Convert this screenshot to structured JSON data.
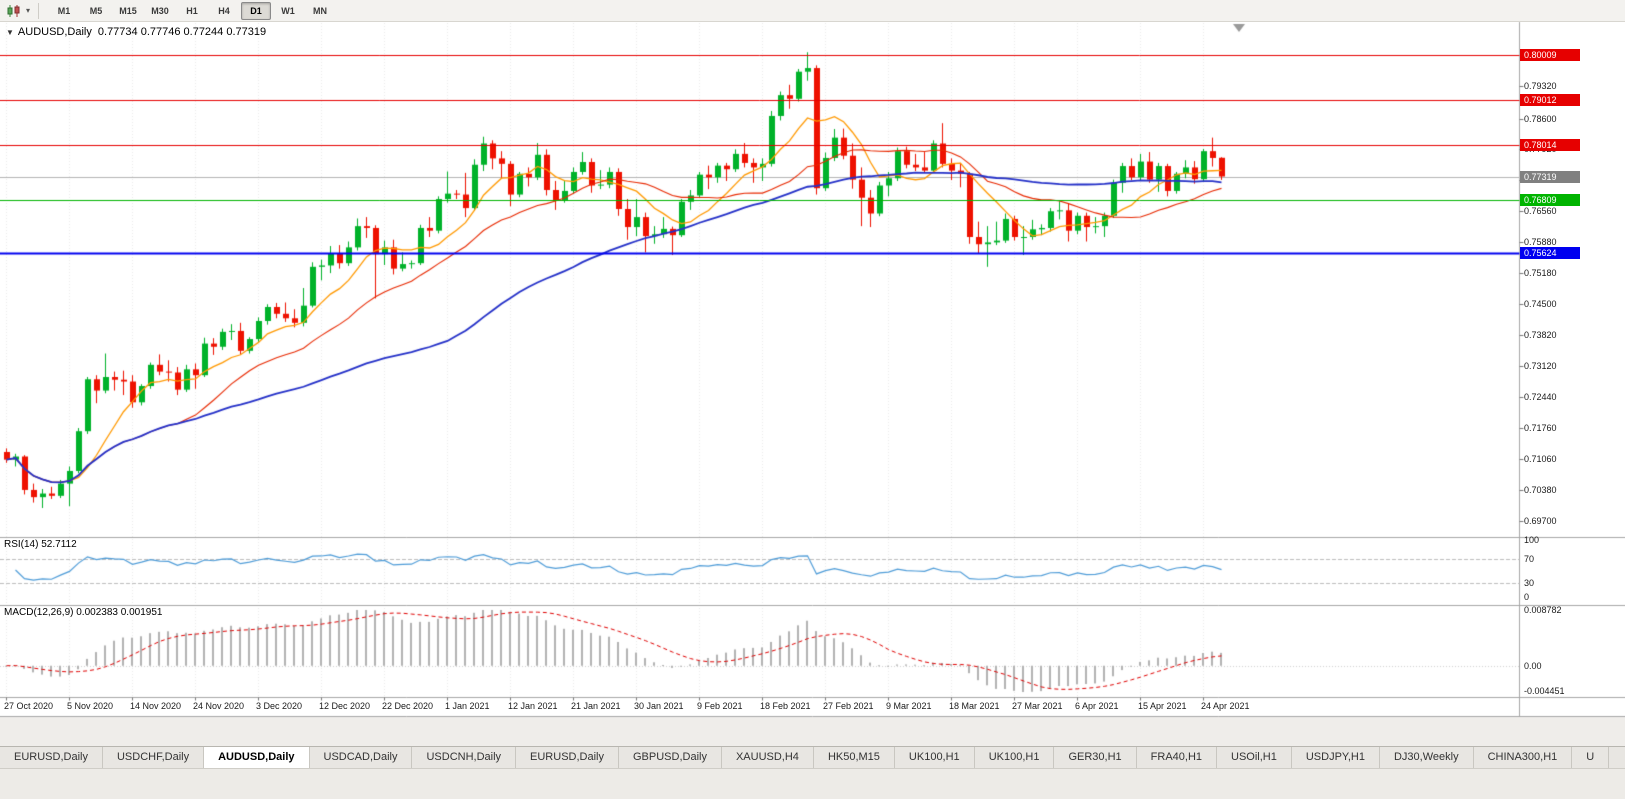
{
  "toolbar": {
    "timeframes": [
      {
        "label": "M1",
        "active": false
      },
      {
        "label": "M5",
        "active": false
      },
      {
        "label": "M15",
        "active": false
      },
      {
        "label": "M30",
        "active": false
      },
      {
        "label": "H1",
        "active": false
      },
      {
        "label": "H4",
        "active": false
      },
      {
        "label": "D1",
        "active": true
      },
      {
        "label": "W1",
        "active": false
      },
      {
        "label": "MN",
        "active": false
      }
    ]
  },
  "chart_title": {
    "collapse_icon": "▼",
    "symbol": "AUDUSD,Daily",
    "ohlc": "0.77734 0.77746 0.77244 0.77319"
  },
  "chart_data": {
    "type": "candlestick",
    "symbol": "AUDUSD",
    "period": "Daily",
    "axis_top_price": 0.8074,
    "axis_bottom_price": 0.6936,
    "price_axis_labels": [
      "0.79320",
      "0.78600",
      "0.77920",
      "0.77240",
      "0.76560",
      "0.75880",
      "0.75180",
      "0.74500",
      "0.73820",
      "0.73120",
      "0.72440",
      "0.71760",
      "0.71060",
      "0.70380",
      "0.69700"
    ],
    "date_labels": [
      "27 Oct 2020",
      "5 Nov 2020",
      "14 Nov 2020",
      "24 Nov 2020",
      "3 Dec 2020",
      "12 Dec 2020",
      "22 Dec 2020",
      "1 Jan 2021",
      "12 Jan 2021",
      "21 Jan 2021",
      "30 Jan 2021",
      "9 Feb 2021",
      "18 Feb 2021",
      "27 Feb 2021",
      "9 Mar 2021",
      "18 Mar 2021",
      "27 Mar 2021",
      "6 Apr 2021",
      "15 Apr 2021",
      "24 Apr 2021"
    ],
    "levels": [
      {
        "price": 0.80009,
        "label": "0.80009",
        "color": "#E60000",
        "line_width": 1
      },
      {
        "price": 0.79012,
        "label": "0.79012",
        "color": "#E60000",
        "line_width": 1
      },
      {
        "price": 0.78014,
        "label": "0.78014",
        "color": "#E60000",
        "line_width": 1
      },
      {
        "price": 0.76809,
        "label": "0.76809",
        "color": "#00B400",
        "line_width": 1
      },
      {
        "price": 0.75624,
        "label": "0.75624",
        "color": "#0000F0",
        "line_width": 2
      }
    ],
    "current_price": {
      "price": 0.77319,
      "label": "0.77319",
      "color": "#808080"
    },
    "moving_averages": [
      {
        "period": 8,
        "color": "#FF9900",
        "width": 1.3
      },
      {
        "period": 20,
        "color": "#E82800",
        "width": 1.1
      },
      {
        "period": 50,
        "color": "#2430C8",
        "width": 1.8
      }
    ],
    "indicators": [
      {
        "title": "RSI(14)",
        "value_label": "52.7112",
        "scale_labels": [
          "100",
          "70",
          "30",
          "0"
        ],
        "upper_level": 70,
        "lower_level": 30,
        "color": "#4E9CD8"
      },
      {
        "title": "MACD(12,26,9)",
        "value_label": "0.002383 0.001951",
        "scale_max": 0.008782,
        "scale_min": -0.004451,
        "scale_labels": [
          "0.008782",
          "0.00",
          "-0.004451"
        ],
        "hist_color": "#B2B2B2",
        "signal_color": "#E00000"
      }
    ],
    "candles": [
      [
        0.7122,
        0.713,
        0.7098,
        0.7105
      ],
      [
        0.7105,
        0.7118,
        0.709,
        0.7112
      ],
      [
        0.7112,
        0.7115,
        0.7028,
        0.7038
      ],
      [
        0.7038,
        0.7052,
        0.701,
        0.7022
      ],
      [
        0.7022,
        0.704,
        0.6998,
        0.703
      ],
      [
        0.703,
        0.7045,
        0.7018,
        0.7025
      ],
      [
        0.7025,
        0.706,
        0.702,
        0.7052
      ],
      [
        0.7052,
        0.709,
        0.7002,
        0.708
      ],
      [
        0.708,
        0.7175,
        0.7075,
        0.7168
      ],
      [
        0.7168,
        0.7288,
        0.7162,
        0.7283
      ],
      [
        0.7283,
        0.7292,
        0.723,
        0.7258
      ],
      [
        0.7258,
        0.734,
        0.7252,
        0.7288
      ],
      [
        0.7288,
        0.73,
        0.7258,
        0.7282
      ],
      [
        0.7282,
        0.7302,
        0.7248,
        0.7278
      ],
      [
        0.7278,
        0.7292,
        0.722,
        0.7232
      ],
      [
        0.7232,
        0.7272,
        0.7225,
        0.7268
      ],
      [
        0.7268,
        0.732,
        0.7262,
        0.7315
      ],
      [
        0.7315,
        0.7338,
        0.7292,
        0.73
      ],
      [
        0.73,
        0.7325,
        0.7278,
        0.7298
      ],
      [
        0.7298,
        0.731,
        0.7248,
        0.726
      ],
      [
        0.726,
        0.7315,
        0.7255,
        0.7305
      ],
      [
        0.7305,
        0.7318,
        0.7262,
        0.7292
      ],
      [
        0.7292,
        0.7375,
        0.7288,
        0.7362
      ],
      [
        0.7362,
        0.7374,
        0.7337,
        0.7355
      ],
      [
        0.7355,
        0.7395,
        0.7348,
        0.7388
      ],
      [
        0.7388,
        0.7405,
        0.737,
        0.739
      ],
      [
        0.739,
        0.7408,
        0.7338,
        0.7346
      ],
      [
        0.7346,
        0.7376,
        0.734,
        0.7372
      ],
      [
        0.7372,
        0.742,
        0.7366,
        0.7412
      ],
      [
        0.7412,
        0.7449,
        0.7404,
        0.7443
      ],
      [
        0.7443,
        0.7452,
        0.7418,
        0.7428
      ],
      [
        0.7428,
        0.7453,
        0.741,
        0.7418
      ],
      [
        0.7418,
        0.7438,
        0.7398,
        0.7408
      ],
      [
        0.7408,
        0.7485,
        0.74,
        0.7446
      ],
      [
        0.7446,
        0.7542,
        0.7442,
        0.7532
      ],
      [
        0.7532,
        0.7548,
        0.7502,
        0.7535
      ],
      [
        0.7535,
        0.7578,
        0.7518,
        0.7562
      ],
      [
        0.7562,
        0.758,
        0.7528,
        0.754
      ],
      [
        0.754,
        0.7588,
        0.7534,
        0.7575
      ],
      [
        0.7575,
        0.7639,
        0.7568,
        0.7622
      ],
      [
        0.7622,
        0.7642,
        0.7596,
        0.7618
      ],
      [
        0.7618,
        0.7624,
        0.7462,
        0.756
      ],
      [
        0.756,
        0.759,
        0.7536,
        0.7575
      ],
      [
        0.7575,
        0.7592,
        0.7515,
        0.7528
      ],
      [
        0.7528,
        0.7564,
        0.7522,
        0.7538
      ],
      [
        0.7538,
        0.7546,
        0.7528,
        0.754
      ],
      [
        0.754,
        0.7625,
        0.7536,
        0.7618
      ],
      [
        0.7618,
        0.7642,
        0.7598,
        0.7612
      ],
      [
        0.7612,
        0.7688,
        0.7606,
        0.7682
      ],
      [
        0.7682,
        0.7743,
        0.7674,
        0.7694
      ],
      [
        0.7694,
        0.7702,
        0.7682,
        0.7692
      ],
      [
        0.7692,
        0.774,
        0.7642,
        0.7662
      ],
      [
        0.7662,
        0.777,
        0.7656,
        0.7758
      ],
      [
        0.7758,
        0.782,
        0.7744,
        0.7805
      ],
      [
        0.7805,
        0.7812,
        0.7748,
        0.7772
      ],
      [
        0.7772,
        0.7788,
        0.7728,
        0.776
      ],
      [
        0.776,
        0.7766,
        0.7666,
        0.7692
      ],
      [
        0.7692,
        0.7742,
        0.7686,
        0.7738
      ],
      [
        0.7738,
        0.7752,
        0.771,
        0.773
      ],
      [
        0.773,
        0.7806,
        0.7724,
        0.778
      ],
      [
        0.778,
        0.7792,
        0.769,
        0.7702
      ],
      [
        0.7702,
        0.7722,
        0.7658,
        0.768
      ],
      [
        0.768,
        0.7722,
        0.7674,
        0.77
      ],
      [
        0.77,
        0.7752,
        0.7694,
        0.7742
      ],
      [
        0.7742,
        0.7786,
        0.7736,
        0.7764
      ],
      [
        0.7764,
        0.7772,
        0.7696,
        0.7712
      ],
      [
        0.7712,
        0.7746,
        0.7704,
        0.7714
      ],
      [
        0.7714,
        0.7752,
        0.7706,
        0.7742
      ],
      [
        0.7742,
        0.775,
        0.7645,
        0.766
      ],
      [
        0.766,
        0.7682,
        0.7592,
        0.762
      ],
      [
        0.762,
        0.7682,
        0.76,
        0.7642
      ],
      [
        0.7642,
        0.7652,
        0.7564,
        0.76
      ],
      [
        0.76,
        0.7622,
        0.7583,
        0.7604
      ],
      [
        0.7604,
        0.7642,
        0.7596,
        0.7616
      ],
      [
        0.7616,
        0.7621,
        0.7558,
        0.7602
      ],
      [
        0.7602,
        0.7682,
        0.7598,
        0.7676
      ],
      [
        0.7676,
        0.7702,
        0.7658,
        0.769
      ],
      [
        0.769,
        0.7742,
        0.7684,
        0.7736
      ],
      [
        0.7736,
        0.7756,
        0.7704,
        0.773
      ],
      [
        0.773,
        0.7762,
        0.7718,
        0.7756
      ],
      [
        0.7756,
        0.7762,
        0.7722,
        0.7748
      ],
      [
        0.7748,
        0.7792,
        0.7742,
        0.7782
      ],
      [
        0.7782,
        0.7806,
        0.7752,
        0.7762
      ],
      [
        0.7762,
        0.7772,
        0.7718,
        0.7752
      ],
      [
        0.7752,
        0.7772,
        0.7722,
        0.776
      ],
      [
        0.776,
        0.7877,
        0.7754,
        0.7866
      ],
      [
        0.7866,
        0.792,
        0.7856,
        0.7912
      ],
      [
        0.7912,
        0.7935,
        0.7882,
        0.7904
      ],
      [
        0.7904,
        0.797,
        0.7898,
        0.7964
      ],
      [
        0.7964,
        0.8007,
        0.7944,
        0.7972
      ],
      [
        0.7972,
        0.7978,
        0.7692,
        0.7706
      ],
      [
        0.7706,
        0.7785,
        0.77,
        0.7773
      ],
      [
        0.7773,
        0.7837,
        0.7766,
        0.7818
      ],
      [
        0.7818,
        0.7838,
        0.777,
        0.7778
      ],
      [
        0.7778,
        0.7805,
        0.7705,
        0.7725
      ],
      [
        0.7725,
        0.7752,
        0.7622,
        0.7685
      ],
      [
        0.7685,
        0.7702,
        0.762,
        0.765
      ],
      [
        0.765,
        0.772,
        0.7644,
        0.7712
      ],
      [
        0.7712,
        0.7742,
        0.7688,
        0.7728
      ],
      [
        0.7728,
        0.7796,
        0.7722,
        0.7788
      ],
      [
        0.7788,
        0.7798,
        0.775,
        0.7758
      ],
      [
        0.7758,
        0.7782,
        0.7744,
        0.7752
      ],
      [
        0.7752,
        0.7786,
        0.774,
        0.7745
      ],
      [
        0.7745,
        0.7812,
        0.774,
        0.7805
      ],
      [
        0.7805,
        0.785,
        0.7752,
        0.776
      ],
      [
        0.776,
        0.7772,
        0.7724,
        0.7745
      ],
      [
        0.7745,
        0.7762,
        0.7708,
        0.7738
      ],
      [
        0.7738,
        0.7742,
        0.7583,
        0.7598
      ],
      [
        0.7598,
        0.7632,
        0.7562,
        0.7582
      ],
      [
        0.7582,
        0.7622,
        0.7532,
        0.7586
      ],
      [
        0.7586,
        0.7632,
        0.758,
        0.759
      ],
      [
        0.759,
        0.765,
        0.7585,
        0.7638
      ],
      [
        0.7638,
        0.7645,
        0.759,
        0.7598
      ],
      [
        0.7598,
        0.7622,
        0.7558,
        0.7598
      ],
      [
        0.7598,
        0.7636,
        0.7592,
        0.7615
      ],
      [
        0.7615,
        0.7626,
        0.7602,
        0.7618
      ],
      [
        0.7618,
        0.7662,
        0.761,
        0.7655
      ],
      [
        0.7655,
        0.7677,
        0.7637,
        0.7657
      ],
      [
        0.7657,
        0.7672,
        0.7588,
        0.7612
      ],
      [
        0.7612,
        0.7652,
        0.7604,
        0.7645
      ],
      [
        0.7645,
        0.7652,
        0.7588,
        0.762
      ],
      [
        0.762,
        0.7642,
        0.7606,
        0.7622
      ],
      [
        0.7622,
        0.7652,
        0.7598,
        0.7645
      ],
      [
        0.7645,
        0.7725,
        0.764,
        0.7718
      ],
      [
        0.7718,
        0.7762,
        0.7696,
        0.7755
      ],
      [
        0.7755,
        0.7772,
        0.7724,
        0.773
      ],
      [
        0.773,
        0.7782,
        0.7722,
        0.7765
      ],
      [
        0.7765,
        0.7786,
        0.7718,
        0.7725
      ],
      [
        0.7725,
        0.7762,
        0.7698,
        0.7755
      ],
      [
        0.7755,
        0.776,
        0.7688,
        0.77
      ],
      [
        0.77,
        0.7742,
        0.7694,
        0.7738
      ],
      [
        0.7738,
        0.7768,
        0.7728,
        0.7752
      ],
      [
        0.7752,
        0.7766,
        0.7716,
        0.7726
      ],
      [
        0.7726,
        0.7793,
        0.772,
        0.7788
      ],
      [
        0.7788,
        0.7818,
        0.7754,
        0.7773
      ],
      [
        0.77734,
        0.77746,
        0.77244,
        0.77319
      ]
    ]
  },
  "tabs": [
    {
      "label": "EURUSD,Daily",
      "active": false
    },
    {
      "label": "USDCHF,Daily",
      "active": false
    },
    {
      "label": "AUDUSD,Daily",
      "active": true
    },
    {
      "label": "USDCAD,Daily",
      "active": false
    },
    {
      "label": "USDCNH,Daily",
      "active": false
    },
    {
      "label": "EURUSD,Daily",
      "active": false
    },
    {
      "label": "GBPUSD,Daily",
      "active": false
    },
    {
      "label": "XAUUSD,H4",
      "active": false
    },
    {
      "label": "HK50,M15",
      "active": false
    },
    {
      "label": "UK100,H1",
      "active": false
    },
    {
      "label": "UK100,H1",
      "active": false
    },
    {
      "label": "GER30,H1",
      "active": false
    },
    {
      "label": "FRA40,H1",
      "active": false
    },
    {
      "label": "USOil,H1",
      "active": false
    },
    {
      "label": "USDJPY,H1",
      "active": false
    },
    {
      "label": "DJ30,Weekly",
      "active": false
    },
    {
      "label": "CHINA300,H1",
      "active": false
    },
    {
      "label": "U",
      "active": false
    }
  ],
  "colors": {
    "up": "#00B22A",
    "down": "#EE1100",
    "grid": "#EAEAEA",
    "separator": "#A6A6A6",
    "current_line": "#B4B4B4",
    "shift_marker": "#9A9A9A",
    "axis_text": "#1a1a1a"
  }
}
